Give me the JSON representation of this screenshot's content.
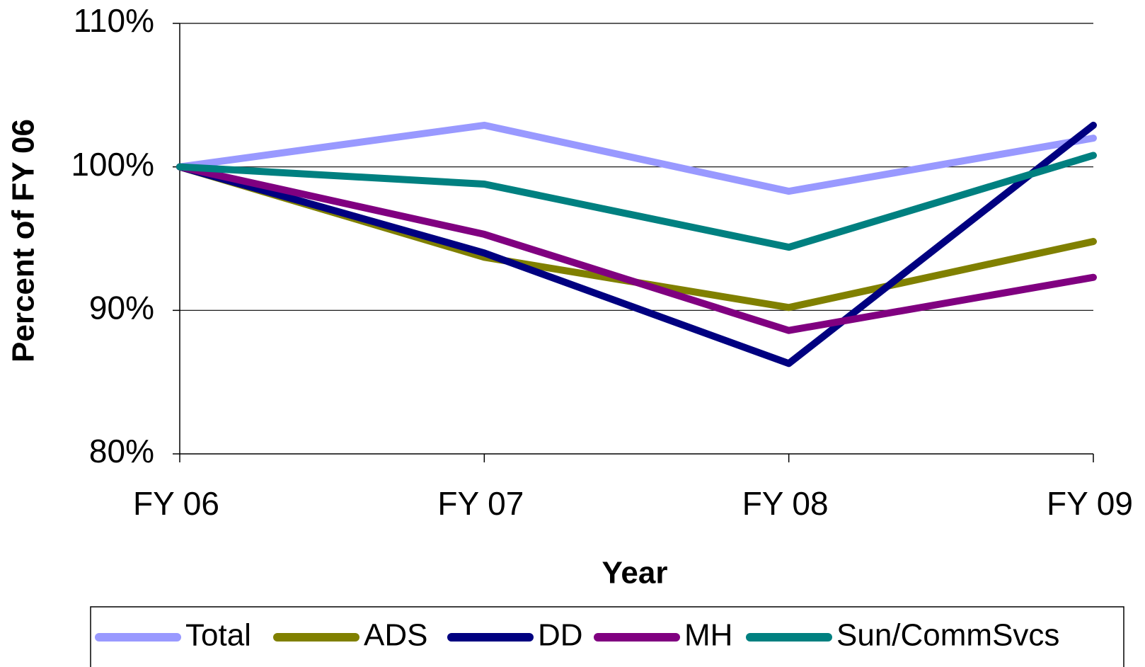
{
  "chart_data": {
    "type": "line",
    "x_label": "Year",
    "y_label": "Percent of FY 06",
    "categories": [
      "FY 06",
      "FY 07",
      "FY 08",
      "FY 09"
    ],
    "series": [
      {
        "name": "Total",
        "color": "#9999ff",
        "values": [
          100,
          102.9,
          98.3,
          102.0
        ]
      },
      {
        "name": "ADS",
        "color": "#808000",
        "values": [
          100,
          93.7,
          90.2,
          94.8
        ]
      },
      {
        "name": "DD",
        "color": "#000080",
        "values": [
          100,
          94.0,
          86.3,
          102.9
        ]
      },
      {
        "name": "MH",
        "color": "#800080",
        "values": [
          100,
          95.3,
          88.6,
          92.3
        ]
      },
      {
        "name": "Sun/CommSvcs",
        "color": "#008080",
        "values": [
          100,
          98.8,
          94.4,
          100.8
        ]
      }
    ],
    "ylim": [
      80,
      110
    ],
    "yticks": [
      {
        "value": 80,
        "label": "80%"
      },
      {
        "value": 90,
        "label": "90%"
      },
      {
        "value": 100,
        "label": "100%"
      },
      {
        "value": 110,
        "label": "110%"
      }
    ],
    "grid": true,
    "legend": "bottom"
  }
}
